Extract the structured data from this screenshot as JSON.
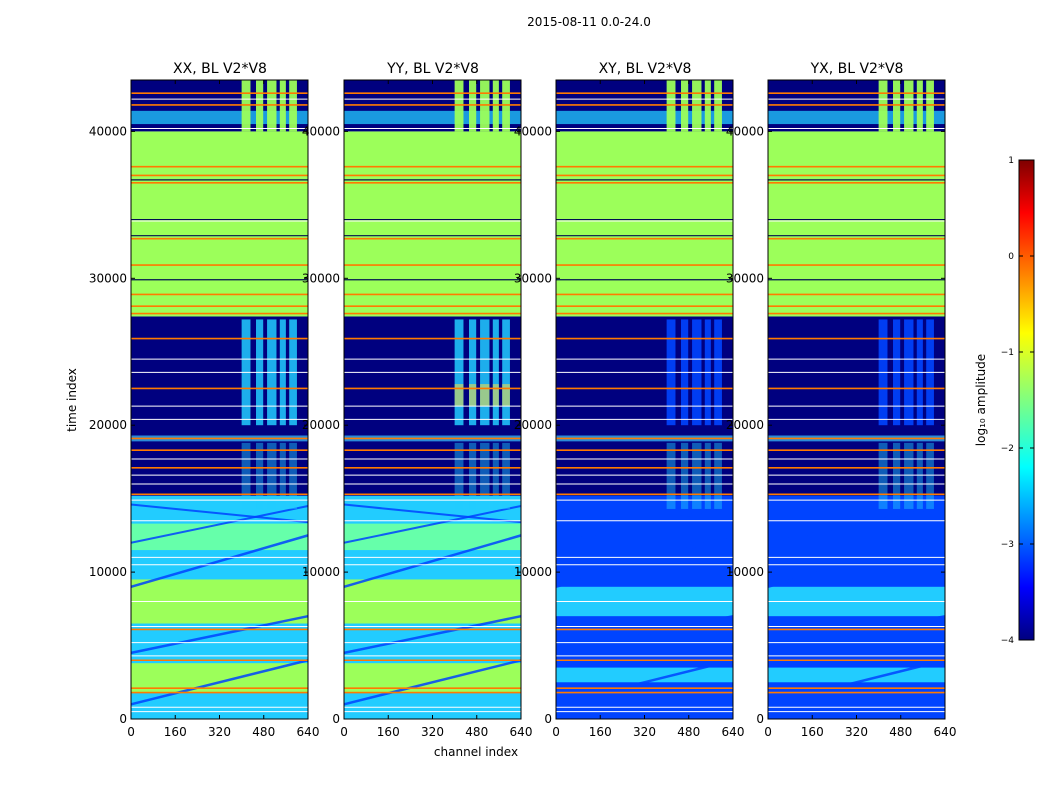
{
  "chart_data": {
    "type": "heatmap",
    "title": "2015-08-11 0.0-24.0",
    "xlabel": "channel index",
    "ylabel": "time index",
    "xlim": [
      0,
      640
    ],
    "ylim": [
      0,
      43500
    ],
    "xticks": [
      0,
      160,
      320,
      480,
      640
    ],
    "yticks": [
      0,
      10000,
      20000,
      30000,
      40000
    ],
    "panels": [
      {
        "name": "XX",
        "title": "XX, BL V2*V8"
      },
      {
        "name": "YY",
        "title": "YY, BL V2*V8"
      },
      {
        "name": "XY",
        "title": "XY, BL V2*V8"
      },
      {
        "name": "YX",
        "title": "YX, BL V2*V8"
      }
    ],
    "colorbar": {
      "label": "log₁₀ amplitude",
      "range": [
        -4,
        1
      ],
      "ticks": [
        "1",
        "0",
        "−1",
        "−2",
        "−3",
        "−4"
      ],
      "colormap": "jet"
    },
    "colors": {
      "dark_blue": "#00007f",
      "mid_blue": "#0044ff",
      "cyan": "#22ccff",
      "green": "#9cff5a",
      "orange": "#ff7a00",
      "white": "#ffffff"
    }
  }
}
